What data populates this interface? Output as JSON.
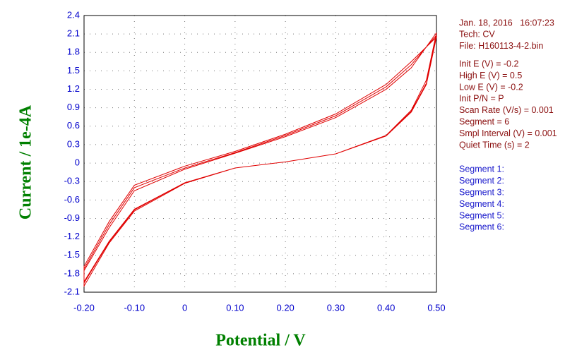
{
  "chart_data": {
    "type": "line",
    "xlabel": "Potential / V",
    "ylabel": "Current / 1e-4A",
    "xlim": [
      -0.2,
      0.5
    ],
    "ylim": [
      -2.1,
      2.4
    ],
    "xticks": [
      {
        "value": -0.2,
        "label": "-0.20"
      },
      {
        "value": -0.1,
        "label": "-0.10"
      },
      0,
      {
        "value": 0.1,
        "label": "0.10"
      },
      {
        "value": 0.2,
        "label": "0.20"
      },
      {
        "value": 0.3,
        "label": "0.30"
      },
      {
        "value": 0.4,
        "label": "0.40"
      },
      {
        "value": 0.5,
        "label": "0.50"
      }
    ],
    "yticks": [
      -2.1,
      -1.8,
      -1.5,
      -1.2,
      -0.9,
      -0.6,
      -0.3,
      0,
      0.3,
      0.6,
      0.9,
      1.2,
      1.5,
      1.8,
      2.1,
      2.4
    ],
    "grid": true,
    "axis_color": "#0000cc",
    "label_color": "#008000",
    "x": [
      -0.2,
      -0.15,
      -0.1,
      0,
      0.1,
      0.2,
      0.3,
      0.4,
      0.45,
      0.5,
      0.48,
      0.45,
      0.4,
      0.3,
      0.2,
      0.1,
      0,
      -0.1,
      -0.15,
      -0.2,
      -0.2,
      -0.15,
      -0.1,
      0,
      0.1,
      0.2,
      0.3,
      0.4,
      0.45,
      0.5,
      0.48,
      0.45,
      0.4,
      0.3,
      0.2,
      0.1,
      0,
      -0.1,
      -0.15,
      -0.2,
      -0.2,
      -0.15,
      -0.1,
      0,
      0.1,
      0.2,
      0.3,
      0.4,
      0.45,
      0.5,
      0.48,
      0.45,
      0.4,
      0.3,
      0.2,
      0.1,
      0,
      -0.1,
      -0.15,
      -0.2
    ],
    "series": [
      {
        "color": "#e00000",
        "values": [
          -1.75,
          -1.05,
          -0.45,
          -0.1,
          0.16,
          0.43,
          0.74,
          1.2,
          1.55,
          2.12,
          1.35,
          0.86,
          0.45,
          0.15,
          0.02,
          -0.08,
          -0.33,
          -0.78,
          -1.3,
          -2.0,
          -1.72,
          -1.0,
          -0.4,
          -0.08,
          0.17,
          0.45,
          0.77,
          1.24,
          1.6,
          2.08,
          1.3,
          0.84,
          0.44,
          0.15,
          0.02,
          -0.08,
          -0.32,
          -0.76,
          -1.28,
          -1.95,
          -1.68,
          -0.95,
          -0.36,
          -0.05,
          0.19,
          0.47,
          0.8,
          1.28,
          1.65,
          2.05,
          1.28,
          0.83,
          0.44,
          0.15,
          0.02,
          -0.08,
          -0.32,
          -0.75,
          -1.27,
          -1.93
        ]
      }
    ],
    "info_color": "#8b1010",
    "info_header": [
      "Jan. 18, 2016   16:07:23",
      "Tech: CV",
      "File: H160113-4-2.bin"
    ],
    "parameters": [
      "Init E (V) = -0.2",
      "High E (V) = 0.5",
      "Low E (V) = -0.2",
      "Init P/N = P",
      "Scan Rate (V/s) = 0.001",
      "Segment = 6",
      "Smpl Interval (V) = 0.001",
      "Quiet Time (s) = 2"
    ],
    "segments_color": "#1a1acc",
    "segments": [
      "Segment 1:",
      "Segment 2:",
      "Segment 3:",
      "Segment 4:",
      "Segment 5:",
      "Segment 6:"
    ]
  }
}
